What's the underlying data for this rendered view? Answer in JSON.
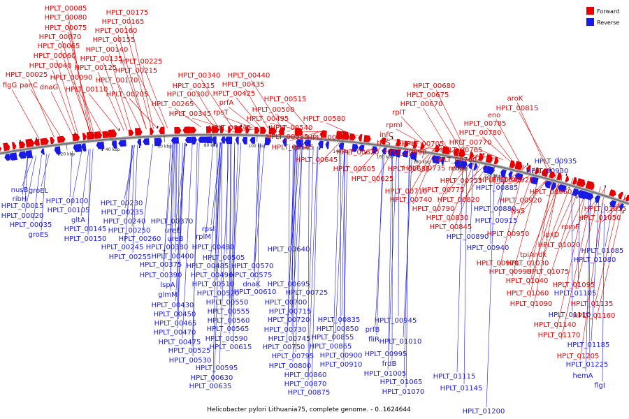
{
  "title": "Helicobacter pylori Lithuania75, complete genome. - 0..1624644",
  "colors": {
    "forward": "#e60000",
    "reverse": "#1a1ae6",
    "backbone": "#7a7a7a"
  },
  "legend": [
    {
      "key": "forward",
      "label": "Forward"
    },
    {
      "key": "reverse",
      "label": "Reverse"
    }
  ],
  "ticks": [
    "20 kbp",
    "40 kbp",
    "60 kbp",
    "80 kbp",
    "100 kbp",
    "120 kbp",
    "140 kbp",
    "160 kbp",
    "180 kbp",
    "200 kbp",
    "220 kbp"
  ],
  "forward_labels": [
    "HPLT_00085",
    "HPLT_00080",
    "HPLT_00075",
    "HPLT_00070",
    "HPLT_00065",
    "HPLT_00060",
    "HPLT_00040",
    "HPLT_00025",
    "flgG",
    "panC",
    "dnaG",
    "HPLT_00175",
    "HPLT_00165",
    "HPLT_00160",
    "HPLT_00155",
    "HPLT_00140",
    "HPLT_00135",
    "HPLT_00125",
    "HPLT_00090",
    "HPLT_00110",
    "HPLT_00170",
    "HPLT_00225",
    "HPLT_00215",
    "HPLT_00205",
    "HPLT_00340",
    "HPLT_00315",
    "HPLT_00300",
    "HPLT_00265",
    "HPLT_00345",
    "HPLT_00440",
    "HPLT_00435",
    "HPLT_00425",
    "prfA",
    "rpsT",
    "HPLT_00445",
    "HPLT_00515",
    "HPLT_00500",
    "HPLT_00495",
    "HPLT_00540",
    "HPLT_00535",
    "HPLT_00545",
    "HPLT_00580",
    "HPLT_00600",
    "HPLT_00680",
    "HPLT_00675",
    "HPLT_00670",
    "rplT",
    "rpmI",
    "infC",
    "thiS",
    "HPLT_00705",
    "HPLT_00690",
    "HPLT_00620",
    "HPLT_00645",
    "HPLT_00605",
    "HPLT_00625",
    "HPLT_00685",
    "HPLT_00710",
    "aroK",
    "HPLT_00815",
    "eno",
    "HPLT_00785",
    "HPLT_00780",
    "HPLT_00770",
    "HPLT_00765",
    "HPLT_00760",
    "recA",
    "HPLT_00735",
    "HPLT_00755",
    "HPLT_00775",
    "HPLT_00740",
    "HPLT_00790",
    "HPLT_00830",
    "HPLT_00845",
    "HPLT_00820",
    "HPLT_00840",
    "HPLT_00925",
    "HPLT_00960",
    "HPLT_00920",
    "lysS",
    "HPLT_00950",
    "lpxD",
    "HPLT_01020",
    "ndk",
    "tpiA",
    "HPLT_00970",
    "HPLT_01030",
    "HPLT_00990",
    "HPLT_01075",
    "HPLT_01040",
    "HPLT_01060",
    "HPLT_01090",
    "HPLT_01055",
    "HPLT_01050",
    "rpmF",
    "HPLT_01095",
    "HPLT_01135",
    "HPLT_01160",
    "HPLT_01140",
    "HPLT_01170",
    "HPLT_01205"
  ],
  "reverse_labels": [
    "nusB",
    "groEL",
    "ribH",
    "HPLT_00015",
    "HPLT_00020",
    "HPLT_00035",
    "groES",
    "HPLT_00100",
    "HPLT_00105",
    "gltA",
    "HPLT_00145",
    "HPLT_00150",
    "HPLT_00230",
    "HPLT_00235",
    "HPLT_00240",
    "HPLT_00250",
    "HPLT_00260",
    "HPLT_00245",
    "HPLT_00255",
    "HPLT_00370",
    "ureE",
    "ureB",
    "HPLT_00380",
    "HPLT_00400",
    "HPLT_00375",
    "HPLT_00390",
    "lspA",
    "glmM",
    "rpsI",
    "rplM",
    "HPLT_00480",
    "HPLT_00505",
    "HPLT_00485",
    "HPLT_00490",
    "HPLT_00510",
    "HPLT_00520",
    "HPLT_00430",
    "HPLT_00450",
    "HPLT_00465",
    "HPLT_00470",
    "HPLT_00475",
    "HPLT_00525",
    "HPLT_00530",
    "HPLT_00550",
    "HPLT_00555",
    "HPLT_00560",
    "HPLT_00565",
    "HPLT_00590",
    "HPLT_00595",
    "HPLT_00630",
    "HPLT_00635",
    "HPLT_00615",
    "HPLT_00570",
    "HPLT_00575",
    "dnaK",
    "HPLT_00610",
    "HPLT_00640",
    "HPLT_00695",
    "HPLT_00725",
    "HPLT_00700",
    "HPLT_00715",
    "HPLT_00730",
    "HPLT_00720",
    "HPLT_00745",
    "HPLT_00750",
    "HPLT_00795",
    "HPLT_00800",
    "HPLT_00860",
    "HPLT_00870",
    "HPLT_00875",
    "HPLT_00835",
    "HPLT_00850",
    "HPLT_00855",
    "HPLT_00865",
    "HPLT_00900",
    "HPLT_00910",
    "prfB",
    "fliR",
    "HPLT_00995",
    "frdB",
    "HPLT_01005",
    "HPLT_01065",
    "HPLT_01070",
    "HPLT_00945",
    "HPLT_01010",
    "HPLT_00935",
    "HPLT_00930",
    "HPLT_00885",
    "HPLT_00880",
    "HPLT_00915",
    "HPLT_00890",
    "HPLT_00940",
    "HPLT_01085",
    "HPLT_01080",
    "HPLT_01105",
    "HPLT_01110",
    "HPLT_01185",
    "HPLT_01115",
    "HPLT_01145",
    "HPLT_01225",
    "HPLT_01200",
    "hemA",
    "flgI"
  ]
}
